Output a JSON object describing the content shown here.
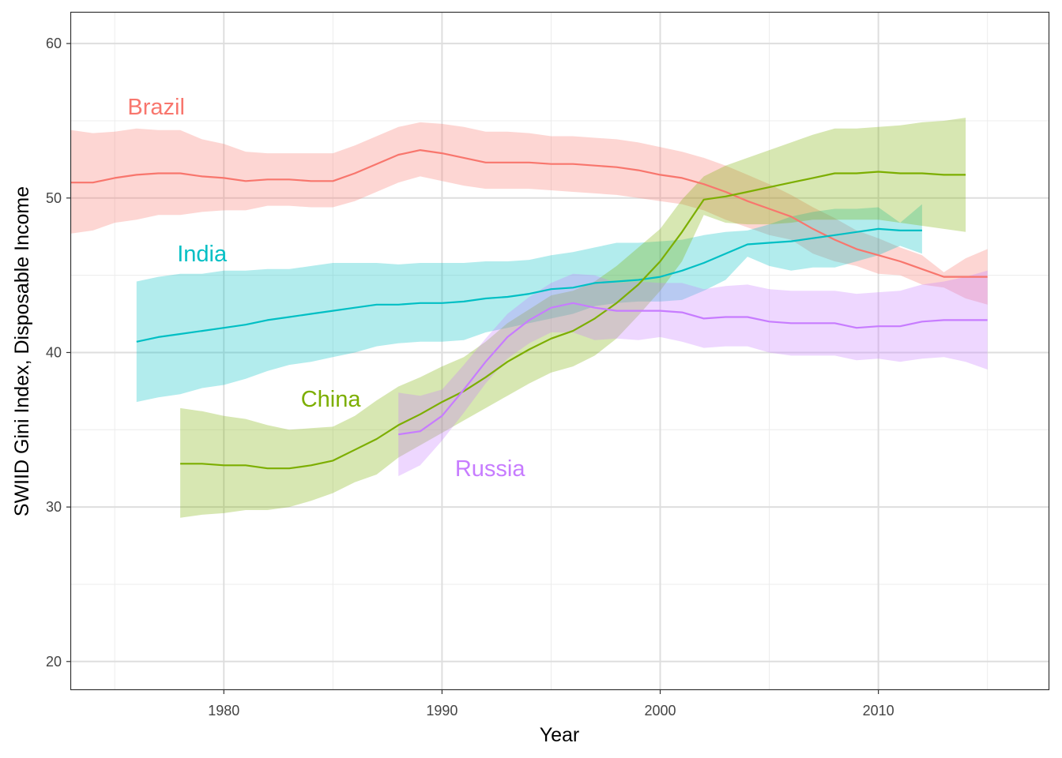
{
  "chart_data": {
    "type": "line",
    "xlabel": "Year",
    "ylabel": "SWIID Gini Index, Disposable Income",
    "xlim": [
      1973,
      2017.8
    ],
    "ylim": [
      18.2,
      62.0
    ],
    "x_ticks": [
      1980,
      1990,
      2000,
      2010
    ],
    "y_ticks": [
      20,
      30,
      40,
      50,
      60
    ],
    "x_minor_ticks": [
      1975,
      1985,
      1995,
      2005,
      2015
    ],
    "y_minor_ticks": [
      25,
      35,
      45,
      55
    ],
    "grid": true,
    "legend": "none (direct labels)",
    "series": [
      {
        "name": "Brazil",
        "color": "#F8766D",
        "x": [
          1973,
          1974,
          1975,
          1976,
          1977,
          1978,
          1979,
          1980,
          1981,
          1982,
          1983,
          1984,
          1985,
          1986,
          1987,
          1988,
          1989,
          1990,
          1991,
          1992,
          1993,
          1994,
          1995,
          1996,
          1997,
          1998,
          1999,
          2000,
          2001,
          2002,
          2003,
          2004,
          2005,
          2006,
          2007,
          2008,
          2009,
          2010,
          2011,
          2012,
          2013,
          2014,
          2015
        ],
        "values": [
          51.0,
          51.0,
          51.3,
          51.5,
          51.6,
          51.6,
          51.4,
          51.3,
          51.1,
          51.2,
          51.2,
          51.1,
          51.1,
          51.6,
          52.2,
          52.8,
          53.1,
          52.9,
          52.6,
          52.3,
          52.3,
          52.3,
          52.2,
          52.2,
          52.1,
          52.0,
          51.8,
          51.5,
          51.3,
          50.9,
          50.4,
          49.8,
          49.3,
          48.8,
          48.0,
          47.3,
          46.7,
          46.3,
          45.9,
          45.4,
          44.9,
          44.9,
          44.9
        ],
        "lower": [
          47.7,
          47.9,
          48.4,
          48.6,
          48.9,
          48.9,
          49.1,
          49.2,
          49.2,
          49.5,
          49.5,
          49.4,
          49.4,
          49.8,
          50.4,
          51.0,
          51.4,
          51.1,
          50.8,
          50.6,
          50.6,
          50.6,
          50.5,
          50.4,
          50.3,
          50.2,
          50.0,
          49.8,
          49.6,
          49.2,
          48.6,
          48.1,
          47.6,
          47.3,
          46.4,
          45.9,
          45.6,
          45.1,
          45.0,
          44.4,
          44.2,
          43.5,
          43.1
        ],
        "upper": [
          54.4,
          54.2,
          54.3,
          54.5,
          54.4,
          54.4,
          53.8,
          53.5,
          53.0,
          52.9,
          52.9,
          52.9,
          52.9,
          53.4,
          54.0,
          54.6,
          54.9,
          54.8,
          54.6,
          54.3,
          54.3,
          54.2,
          54.0,
          54.0,
          53.9,
          53.8,
          53.6,
          53.3,
          53.0,
          52.6,
          52.1,
          51.5,
          50.9,
          50.2,
          49.4,
          48.7,
          47.9,
          47.4,
          46.8,
          46.3,
          45.2,
          46.1,
          46.7
        ]
      },
      {
        "name": "India",
        "color": "#00BFC4",
        "x": [
          1976,
          1977,
          1978,
          1979,
          1980,
          1981,
          1982,
          1983,
          1984,
          1985,
          1986,
          1987,
          1988,
          1989,
          1990,
          1991,
          1992,
          1993,
          1994,
          1995,
          1996,
          1997,
          1998,
          1999,
          2000,
          2001,
          2002,
          2003,
          2004,
          2005,
          2006,
          2007,
          2008,
          2009,
          2010,
          2011,
          2012
        ],
        "values": [
          40.7,
          41.0,
          41.2,
          41.4,
          41.6,
          41.8,
          42.1,
          42.3,
          42.5,
          42.7,
          42.9,
          43.1,
          43.1,
          43.2,
          43.2,
          43.3,
          43.5,
          43.6,
          43.8,
          44.1,
          44.2,
          44.5,
          44.6,
          44.7,
          44.9,
          45.3,
          45.8,
          46.4,
          47.0,
          47.1,
          47.2,
          47.4,
          47.6,
          47.8,
          48.0,
          47.9,
          47.9
        ],
        "lower": [
          36.8,
          37.1,
          37.3,
          37.7,
          37.9,
          38.3,
          38.8,
          39.2,
          39.4,
          39.7,
          40.0,
          40.4,
          40.6,
          40.7,
          40.7,
          40.8,
          41.3,
          41.6,
          41.9,
          42.2,
          42.5,
          43.0,
          43.2,
          43.3,
          43.3,
          43.4,
          44.0,
          44.7,
          46.2,
          45.6,
          45.3,
          45.5,
          45.5,
          45.9,
          46.3,
          46.9,
          46.4
        ],
        "upper": [
          44.6,
          44.9,
          45.1,
          45.1,
          45.3,
          45.3,
          45.4,
          45.4,
          45.6,
          45.8,
          45.8,
          45.8,
          45.7,
          45.8,
          45.8,
          45.8,
          45.9,
          45.9,
          46.0,
          46.3,
          46.5,
          46.8,
          47.1,
          47.1,
          47.2,
          47.3,
          47.6,
          47.8,
          47.9,
          48.3,
          48.8,
          49.1,
          49.3,
          49.3,
          49.4,
          48.4,
          49.6
        ]
      },
      {
        "name": "China",
        "color": "#7CAE00",
        "x": [
          1978,
          1979,
          1980,
          1981,
          1982,
          1983,
          1984,
          1985,
          1986,
          1987,
          1988,
          1989,
          1990,
          1991,
          1992,
          1993,
          1994,
          1995,
          1996,
          1997,
          1998,
          1999,
          2000,
          2001,
          2002,
          2003,
          2004,
          2005,
          2006,
          2007,
          2008,
          2009,
          2010,
          2011,
          2012,
          2013,
          2014
        ],
        "values": [
          32.8,
          32.8,
          32.7,
          32.7,
          32.5,
          32.5,
          32.7,
          33.0,
          33.7,
          34.4,
          35.3,
          36.0,
          36.8,
          37.5,
          38.4,
          39.4,
          40.2,
          40.9,
          41.4,
          42.2,
          43.2,
          44.4,
          45.9,
          47.8,
          49.9,
          50.1,
          50.4,
          50.7,
          51.0,
          51.3,
          51.6,
          51.6,
          51.7,
          51.6,
          51.6,
          51.5,
          51.5
        ],
        "lower": [
          29.3,
          29.5,
          29.6,
          29.8,
          29.8,
          30.0,
          30.4,
          30.9,
          31.6,
          32.1,
          33.2,
          34.0,
          34.8,
          35.6,
          36.4,
          37.2,
          38.0,
          38.7,
          39.1,
          39.8,
          40.9,
          42.4,
          44.0,
          45.9,
          48.9,
          48.4,
          48.3,
          48.3,
          48.4,
          48.6,
          48.6,
          48.6,
          48.6,
          48.4,
          48.2,
          48.0,
          47.8
        ],
        "upper": [
          36.4,
          36.2,
          35.9,
          35.7,
          35.3,
          35.0,
          35.1,
          35.2,
          35.9,
          36.9,
          37.8,
          38.4,
          39.1,
          39.7,
          40.7,
          41.9,
          42.8,
          43.7,
          44.0,
          44.6,
          45.6,
          46.8,
          48.0,
          49.9,
          51.4,
          52.1,
          52.6,
          53.1,
          53.6,
          54.1,
          54.5,
          54.5,
          54.6,
          54.7,
          54.9,
          55.0,
          55.2
        ]
      },
      {
        "name": "Russia",
        "color": "#C77CFF",
        "x": [
          1988,
          1989,
          1990,
          1991,
          1992,
          1993,
          1994,
          1995,
          1996,
          1997,
          1998,
          1999,
          2000,
          2001,
          2002,
          2003,
          2004,
          2005,
          2006,
          2007,
          2008,
          2009,
          2010,
          2011,
          2012,
          2013,
          2014,
          2015
        ],
        "values": [
          34.7,
          34.9,
          35.9,
          37.6,
          39.4,
          41.0,
          42.1,
          42.9,
          43.2,
          42.9,
          42.7,
          42.7,
          42.7,
          42.6,
          42.2,
          42.3,
          42.3,
          42.0,
          41.9,
          41.9,
          41.9,
          41.6,
          41.7,
          41.7,
          42.0,
          42.1,
          42.1,
          42.1
        ],
        "lower": [
          32.0,
          32.7,
          34.3,
          36.1,
          38.0,
          39.6,
          40.6,
          41.3,
          41.3,
          40.8,
          40.9,
          40.8,
          41.0,
          40.7,
          40.3,
          40.4,
          40.4,
          40.0,
          39.8,
          39.8,
          39.8,
          39.5,
          39.6,
          39.4,
          39.6,
          39.7,
          39.4,
          38.9
        ],
        "upper": [
          37.4,
          37.2,
          37.6,
          39.2,
          40.9,
          42.5,
          43.6,
          44.5,
          45.1,
          45.0,
          44.5,
          44.6,
          44.5,
          44.5,
          44.1,
          44.3,
          44.4,
          44.1,
          44.0,
          44.0,
          44.0,
          43.8,
          43.9,
          44.0,
          44.4,
          44.6,
          44.9,
          45.3
        ]
      }
    ],
    "annotations": [
      {
        "text": "Brazil",
        "x": 1976.9,
        "y": 55.8,
        "color": "#F8766D"
      },
      {
        "text": "India",
        "x": 1979.0,
        "y": 46.3,
        "color": "#00BFC4"
      },
      {
        "text": "China",
        "x": 1984.9,
        "y": 36.9,
        "color": "#7CAE00"
      },
      {
        "text": "Russia",
        "x": 1992.2,
        "y": 32.4,
        "color": "#C77CFF"
      }
    ]
  }
}
